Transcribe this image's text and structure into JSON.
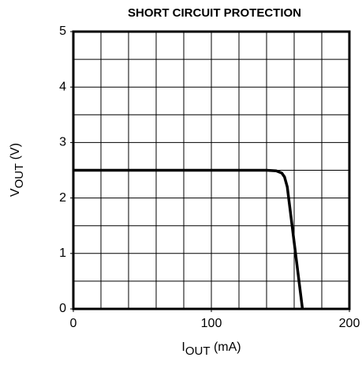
{
  "chart_data": {
    "type": "line",
    "title": "SHORT CIRCUIT PROTECTION",
    "xlabel": {
      "main": "I",
      "sub": "OUT",
      "unit": " (mA)"
    },
    "ylabel": {
      "main": "V",
      "sub": "OUT",
      "unit": " (V)"
    },
    "x": [
      0,
      140,
      147,
      151,
      153,
      155,
      166
    ],
    "series": [
      {
        "color": "#000000",
        "values": [
          2.5,
          2.5,
          2.49,
          2.45,
          2.38,
          2.2,
          0
        ]
      }
    ],
    "xlim": [
      0,
      200
    ],
    "ylim": [
      0,
      5
    ],
    "xticks": [
      0,
      100,
      200
    ],
    "yticks": [
      0,
      1,
      2,
      3,
      4,
      5
    ],
    "xgrid": [
      20,
      40,
      60,
      80,
      100,
      120,
      140,
      160,
      180
    ],
    "ygrid": [
      0.5,
      1,
      1.5,
      2,
      2.5,
      3,
      3.5,
      4,
      4.5
    ],
    "grid": true
  }
}
